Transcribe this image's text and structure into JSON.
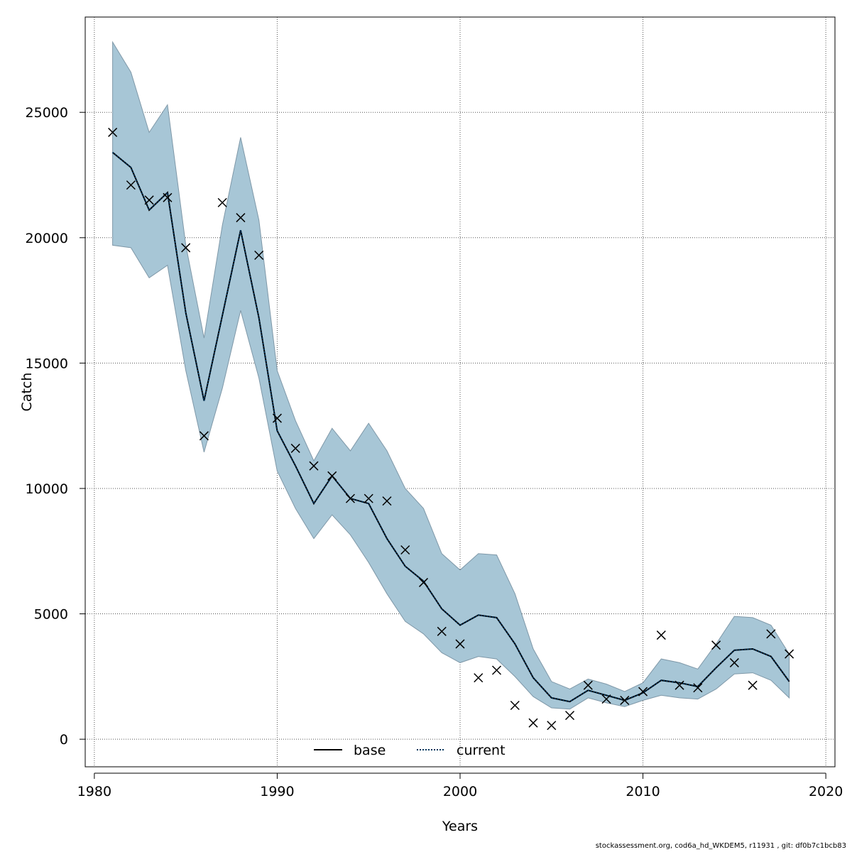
{
  "chart_data": {
    "type": "line",
    "xlabel": "Years",
    "ylabel": "Catch",
    "xlim": [
      1979.5,
      2020.5
    ],
    "ylim": [
      -1100,
      28800
    ],
    "xticks": [
      1980,
      1990,
      2000,
      2010,
      2020
    ],
    "yticks": [
      0,
      5000,
      10000,
      15000,
      20000,
      25000
    ],
    "grid": true,
    "legend": {
      "position": "bottom-center",
      "entries": [
        "base",
        "current"
      ]
    },
    "colors": {
      "band": "#a7c6d6",
      "band_edge": "#7f98a8",
      "current_line": "#00335a",
      "base_line": "#000000",
      "observed": "#000000"
    },
    "x": [
      1981,
      1982,
      1983,
      1984,
      1985,
      1986,
      1987,
      1988,
      1989,
      1990,
      1991,
      1992,
      1993,
      1994,
      1995,
      1996,
      1997,
      1998,
      1999,
      2000,
      2001,
      2002,
      2003,
      2004,
      2005,
      2006,
      2007,
      2008,
      2009,
      2010,
      2011,
      2012,
      2013,
      2014,
      2015,
      2016,
      2017,
      2018
    ],
    "series": [
      {
        "name": "base",
        "style": "solid",
        "values": [
          23400,
          22800,
          21100,
          21800,
          17000,
          13500,
          16900,
          20300,
          16800,
          12300,
          10900,
          9400,
          10500,
          9600,
          9400,
          8000,
          6900,
          6300,
          5200,
          4550,
          4950,
          4850,
          3800,
          2450,
          1650,
          1500,
          1950,
          1750,
          1550,
          1850,
          2350,
          2250,
          2100,
          2850,
          3550,
          3600,
          3300,
          2300
        ]
      },
      {
        "name": "current",
        "style": "dotted",
        "values": [
          23400,
          22800,
          21100,
          21800,
          17000,
          13500,
          16900,
          20300,
          16800,
          12300,
          10900,
          9400,
          10500,
          9600,
          9400,
          8000,
          6900,
          6300,
          5200,
          4550,
          4950,
          4850,
          3800,
          2450,
          1650,
          1500,
          1950,
          1750,
          1550,
          1850,
          2350,
          2250,
          2100,
          2850,
          3550,
          3600,
          3300,
          2300
        ]
      }
    ],
    "band": {
      "upper": [
        27800,
        26600,
        24200,
        25300,
        19700,
        16000,
        20500,
        24000,
        20700,
        14700,
        12700,
        11100,
        12400,
        11500,
        12600,
        11500,
        10000,
        9200,
        7400,
        6750,
        7400,
        7350,
        5800,
        3600,
        2300,
        2000,
        2400,
        2200,
        1900,
        2250,
        3200,
        3050,
        2800,
        3800,
        4900,
        4850,
        4550,
        3400
      ],
      "lower": [
        19700,
        19600,
        18400,
        18900,
        14700,
        11450,
        14000,
        17100,
        14400,
        10700,
        9200,
        8000,
        8950,
        8150,
        7050,
        5800,
        4700,
        4200,
        3450,
        3050,
        3300,
        3200,
        2500,
        1700,
        1250,
        1200,
        1650,
        1450,
        1300,
        1550,
        1750,
        1650,
        1600,
        2000,
        2600,
        2650,
        2350,
        1650
      ]
    },
    "observed": [
      24200,
      22100,
      21500,
      21600,
      19600,
      12100,
      21400,
      20800,
      19300,
      12800,
      11600,
      10900,
      10500,
      9600,
      9600,
      9500,
      7550,
      6250,
      4300,
      3800,
      2450,
      2750,
      1350,
      650,
      550,
      950,
      2150,
      1600,
      1550,
      1900,
      4150,
      2150,
      2050,
      3750,
      3050,
      2150,
      4200,
      3400
    ]
  },
  "footer": "stockassessment.org, cod6a_hd_WKDEM5, r11931 , git: df0b7c1bcb83"
}
